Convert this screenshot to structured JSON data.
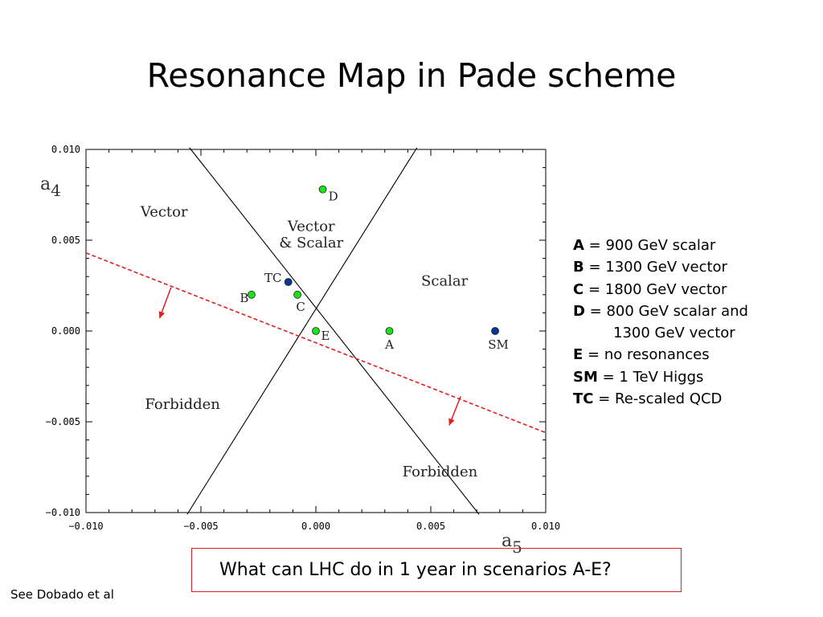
{
  "title": "Resonance Map in Pade scheme",
  "chart_data": {
    "type": "scatter",
    "xlabel": "a5",
    "ylabel": "a4",
    "xlim": [
      -0.01,
      0.01
    ],
    "ylim": [
      -0.01,
      0.01
    ],
    "x_ticks": [
      "−0.010",
      "−0.005",
      "0.000",
      "0.005",
      "0.010"
    ],
    "y_ticks": [
      "0.010",
      "0.005",
      "0.000",
      "−0.005",
      "−0.010"
    ],
    "grid": false,
    "points": [
      {
        "label": "A",
        "x": 0.0032,
        "y": 0.0,
        "color": "#22dd22"
      },
      {
        "label": "B",
        "x": -0.0028,
        "y": 0.002,
        "color": "#22dd22"
      },
      {
        "label": "C",
        "x": -0.0008,
        "y": 0.002,
        "color": "#22dd22"
      },
      {
        "label": "D",
        "x": 0.0003,
        "y": 0.0078,
        "color": "#22dd22"
      },
      {
        "label": "E",
        "x": 0.0,
        "y": 0.0,
        "color": "#22dd22"
      },
      {
        "label": "SM",
        "x": 0.0078,
        "y": 0.0,
        "color": "#1030a0"
      },
      {
        "label": "TC",
        "x": -0.0012,
        "y": 0.0027,
        "color": "#1030a0"
      }
    ],
    "lines": [
      {
        "style": "solid",
        "color": "#000000",
        "points": [
          [
            -0.0055,
            0.0101
          ],
          [
            0.0071,
            -0.0101
          ]
        ]
      },
      {
        "style": "solid",
        "color": "#000000",
        "points": [
          [
            -0.0056,
            -0.0101
          ],
          [
            0.0044,
            0.0101
          ]
        ]
      },
      {
        "style": "dashed",
        "color": "#e02020",
        "points": [
          [
            -0.01,
            0.0043
          ],
          [
            0.01,
            -0.0056
          ]
        ]
      }
    ],
    "arrows": [
      {
        "color": "#e02020",
        "from": [
          -0.0063,
          0.0024
        ],
        "to": [
          -0.0068,
          0.0007
        ]
      },
      {
        "color": "#e02020",
        "from": [
          0.0063,
          -0.0036
        ],
        "to": [
          0.0058,
          -0.0052
        ]
      }
    ],
    "region_labels": [
      {
        "text": "Vector",
        "x": -0.0066,
        "y": 0.0063
      },
      {
        "text": "Vector",
        "x": -0.0002,
        "y": 0.0055
      },
      {
        "text": "& Scalar",
        "x": -0.0002,
        "y": 0.0046
      },
      {
        "text": "Scalar",
        "x": 0.0056,
        "y": 0.0025
      },
      {
        "text": "Forbidden",
        "x": -0.0058,
        "y": -0.0043
      },
      {
        "text": "Forbidden",
        "x": 0.0054,
        "y": -0.008
      }
    ]
  },
  "legend": [
    {
      "key": "A",
      "text": " =  900 GeV scalar"
    },
    {
      "key": "B",
      "text": " = 1300 GeV vector"
    },
    {
      "key": "C",
      "text": " = 1800 GeV vector"
    },
    {
      "key": "D",
      "text": " = 800 GeV scalar and"
    },
    {
      "key": "",
      "text": "1300 GeV vector"
    },
    {
      "key": "E",
      "text": " = no resonances"
    },
    {
      "key": "SM",
      "text": " = 1 TeV Higgs"
    },
    {
      "key": "TC",
      "text": " = Re-scaled QCD"
    }
  ],
  "question": "What can LHC do in 1 year in scenarios A-E?",
  "citation": "See Dobado et al"
}
